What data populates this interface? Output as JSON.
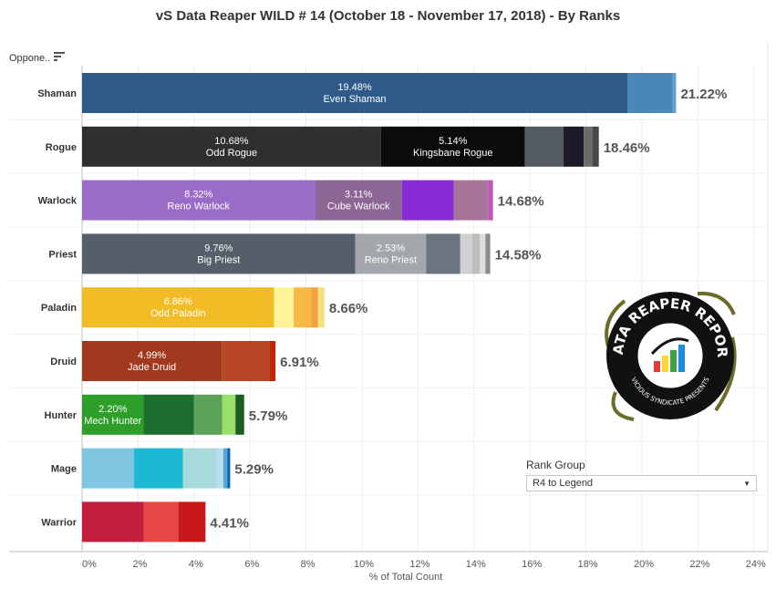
{
  "title": "vS Data Reaper WILD # 14 (October 18 - November 17, 2018) - By Ranks",
  "opponent_header": "Oppone..",
  "filter": {
    "label": "Rank Group",
    "selected": "R4 to Legend",
    "caret_icon": "chevron-down-icon"
  },
  "logo": {
    "text_top": "DATA REAPER REPORT",
    "text_bottom": "VICIOUS SYNDICATE PRESENTS"
  },
  "chart_data": {
    "type": "bar",
    "orientation": "horizontal",
    "stacked": true,
    "title": "vS Data Reaper WILD # 14 (October 18 - November 17, 2018) - By Ranks",
    "xlabel": "% of Total Count",
    "ylabel": "Oppone..",
    "xlim": [
      0,
      24
    ],
    "xticks": [
      0,
      2,
      4,
      6,
      8,
      10,
      12,
      14,
      16,
      18,
      20,
      22,
      24
    ],
    "xtick_labels": [
      "0%",
      "2%",
      "4%",
      "6%",
      "8%",
      "10%",
      "12%",
      "14%",
      "16%",
      "18%",
      "20%",
      "22%",
      "24%"
    ],
    "grid": true,
    "categories": [
      {
        "name": "Shaman",
        "total": 21.22,
        "total_label": "21.22%",
        "segments": [
          {
            "name": "Even Shaman",
            "value": 19.48,
            "label": "19.48%",
            "color": "#2E5A8A"
          },
          {
            "name": "",
            "value": 1.62,
            "label": "",
            "color": "#4A86B8"
          },
          {
            "name": "",
            "value": 0.12,
            "label": "",
            "color": "#5FA3D4"
          }
        ]
      },
      {
        "name": "Rogue",
        "total": 18.46,
        "total_label": "18.46%",
        "segments": [
          {
            "name": "Odd Rogue",
            "value": 10.68,
            "label": "10.68%",
            "color": "#2F2F2F"
          },
          {
            "name": "Kingsbane Rogue",
            "value": 5.14,
            "label": "5.14%",
            "color": "#0B0B0B"
          },
          {
            "name": "",
            "value": 1.38,
            "label": "",
            "color": "#545B63"
          },
          {
            "name": "",
            "value": 0.72,
            "label": "",
            "color": "#1D1A29"
          },
          {
            "name": "",
            "value": 0.32,
            "label": "",
            "color": "#6A6A6A"
          },
          {
            "name": "",
            "value": 0.22,
            "label": "",
            "color": "#474747"
          }
        ]
      },
      {
        "name": "Warlock",
        "total": 14.68,
        "total_label": "14.68%",
        "segments": [
          {
            "name": "Reno Warlock",
            "value": 8.32,
            "label": "8.32%",
            "color": "#9A6CC8"
          },
          {
            "name": "Cube Warlock",
            "value": 3.11,
            "label": "3.11%",
            "color": "#8E6696"
          },
          {
            "name": "",
            "value": 1.85,
            "label": "",
            "color": "#8A2BD8"
          },
          {
            "name": "",
            "value": 1.22,
            "label": "",
            "color": "#A8759A"
          },
          {
            "name": "",
            "value": 0.18,
            "label": "",
            "color": "#C255B8"
          }
        ]
      },
      {
        "name": "Priest",
        "total": 14.58,
        "total_label": "14.58%",
        "segments": [
          {
            "name": "Big Priest",
            "value": 9.76,
            "label": "9.76%",
            "color": "#555F69"
          },
          {
            "name": "Reno Priest",
            "value": 2.53,
            "label": "2.53%",
            "color": "#A3A7AB"
          },
          {
            "name": "",
            "value": 1.22,
            "label": "",
            "color": "#6A7580"
          },
          {
            "name": "",
            "value": 0.42,
            "label": "",
            "color": "#D0D0D0"
          },
          {
            "name": "",
            "value": 0.28,
            "label": "",
            "color": "#BDBDBD"
          },
          {
            "name": "",
            "value": 0.2,
            "label": "",
            "color": "#DDDDDD"
          },
          {
            "name": "",
            "value": 0.17,
            "label": "",
            "color": "#8A8A8A"
          }
        ]
      },
      {
        "name": "Paladin",
        "total": 8.66,
        "total_label": "8.66%",
        "segments": [
          {
            "name": "Odd Paladin",
            "value": 6.86,
            "label": "6.86%",
            "color": "#F2BC27"
          },
          {
            "name": "",
            "value": 0.7,
            "label": "",
            "color": "#FFF39A"
          },
          {
            "name": "",
            "value": 0.62,
            "label": "",
            "color": "#F8B844"
          },
          {
            "name": "",
            "value": 0.25,
            "label": "",
            "color": "#F3A23D"
          },
          {
            "name": "",
            "value": 0.23,
            "label": "",
            "color": "#F6E27A"
          }
        ]
      },
      {
        "name": "Druid",
        "total": 6.91,
        "total_label": "6.91%",
        "segments": [
          {
            "name": "Jade Druid",
            "value": 4.99,
            "label": "4.99%",
            "color": "#A0391E"
          },
          {
            "name": "",
            "value": 1.72,
            "label": "",
            "color": "#B84626"
          },
          {
            "name": "",
            "value": 0.2,
            "label": "",
            "color": "#C0270A"
          }
        ]
      },
      {
        "name": "Hunter",
        "total": 5.79,
        "total_label": "5.79%",
        "segments": [
          {
            "name": "Mech Hunter",
            "value": 2.2,
            "label": "2.20%",
            "color": "#2E9E2A"
          },
          {
            "name": "",
            "value": 1.8,
            "label": "",
            "color": "#1D6E2F"
          },
          {
            "name": "",
            "value": 1.0,
            "label": "",
            "color": "#5DA25B"
          },
          {
            "name": "",
            "value": 0.48,
            "label": "",
            "color": "#98E06A"
          },
          {
            "name": "",
            "value": 0.31,
            "label": "",
            "color": "#1A5E23"
          }
        ]
      },
      {
        "name": "Mage",
        "total": 5.29,
        "total_label": "5.29%",
        "segments": [
          {
            "name": "",
            "value": 1.85,
            "label": "",
            "color": "#7FC6E2"
          },
          {
            "name": "",
            "value": 1.75,
            "label": "",
            "color": "#1CB9D2"
          },
          {
            "name": "",
            "value": 1.2,
            "label": "",
            "color": "#A8DADC"
          },
          {
            "name": "",
            "value": 0.25,
            "label": "",
            "color": "#B9DCEF"
          },
          {
            "name": "",
            "value": 0.14,
            "label": "",
            "color": "#4FA8D6"
          },
          {
            "name": "",
            "value": 0.1,
            "label": "",
            "color": "#0B5FA6"
          }
        ]
      },
      {
        "name": "Warrior",
        "total": 4.41,
        "total_label": "4.41%",
        "segments": [
          {
            "name": "",
            "value": 2.2,
            "label": "",
            "color": "#C21D3D"
          },
          {
            "name": "",
            "value": 1.24,
            "label": "",
            "color": "#E84545"
          },
          {
            "name": "",
            "value": 0.97,
            "label": "",
            "color": "#C71919"
          }
        ]
      }
    ]
  }
}
